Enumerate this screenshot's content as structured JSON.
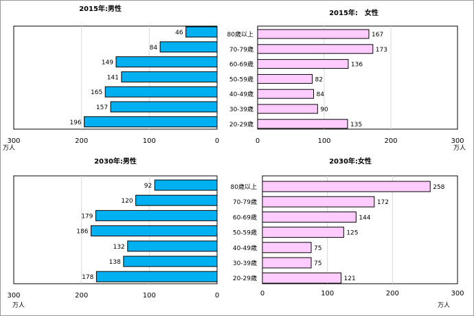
{
  "colors": {
    "male_fill": "#00b0f0",
    "female_fill": "#ffccff",
    "bar_stroke": "#000000",
    "grid": "#d9d9d9"
  },
  "chart_data": [
    {
      "type": "bar",
      "orientation": "horizontal",
      "direction": "right-to-left",
      "title": "2015年:男性",
      "unit": "万人",
      "xlim": [
        0,
        300
      ],
      "ticks": [
        "300",
        "200",
        "100",
        "0"
      ],
      "categories": [
        "80歳以上",
        "70-79歳",
        "60-69歳",
        "50-59歳",
        "40-49歳",
        "30-39歳",
        "20-29歳"
      ],
      "values": [
        46,
        84,
        149,
        141,
        165,
        157,
        196
      ],
      "labels": [
        "46",
        "84",
        "149",
        "141",
        "165",
        "157",
        "196"
      ]
    },
    {
      "type": "bar",
      "orientation": "horizontal",
      "direction": "left-to-right",
      "title": "2015年:　女性",
      "unit": "万人",
      "xlim": [
        0,
        300
      ],
      "ticks": [
        "0",
        "100",
        "200",
        "300"
      ],
      "categories": [
        "80歳以上",
        "70-79歳",
        "60-69歳",
        "50-59歳",
        "40-49歳",
        "30-39歳",
        "20-29歳"
      ],
      "values": [
        167,
        173,
        136,
        82,
        84,
        90,
        135
      ],
      "labels": [
        "167",
        "173",
        "136",
        "82",
        "84",
        "90",
        "135"
      ]
    },
    {
      "type": "bar",
      "orientation": "horizontal",
      "direction": "right-to-left",
      "title": "2030年:男性",
      "unit": "万人",
      "xlim": [
        0,
        300
      ],
      "ticks": [
        "300",
        "200",
        "100",
        "0"
      ],
      "categories": [
        "80歳以上",
        "70-79歳",
        "60-69歳",
        "50-59歳",
        "40-49歳",
        "30-39歳",
        "20-29歳"
      ],
      "values": [
        92,
        120,
        179,
        186,
        132,
        138,
        178
      ],
      "labels": [
        "92",
        "120",
        "179",
        "186",
        "132",
        "138",
        "178"
      ]
    },
    {
      "type": "bar",
      "orientation": "horizontal",
      "direction": "left-to-right",
      "title": "2030年:女性",
      "unit": "万人",
      "xlim": [
        0,
        300
      ],
      "ticks": [
        "0",
        "100",
        "200",
        "300"
      ],
      "categories": [
        "80歳以上",
        "70-79歳",
        "60-69歳",
        "50-59歳",
        "40-49歳",
        "30-39歳",
        "20-29歳"
      ],
      "values": [
        258,
        172,
        144,
        125,
        75,
        75,
        121
      ],
      "labels": [
        "258",
        "172",
        "144",
        "125",
        "75",
        "75",
        "121"
      ]
    }
  ]
}
